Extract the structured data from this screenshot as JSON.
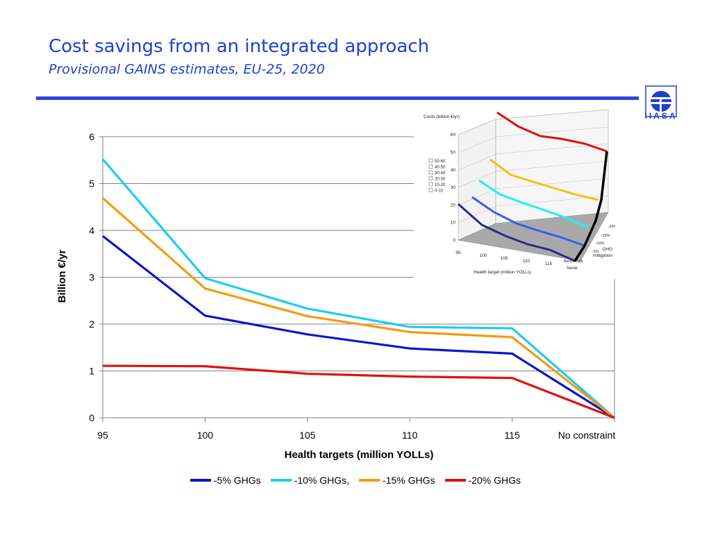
{
  "header": {
    "title": "Cost savings from an integrated approach",
    "subtitle": "Provisional GAINS estimates, EU-25, 2020"
  },
  "logo": {
    "text": "IIASA",
    "color": "#1f3fcf"
  },
  "chart_data": {
    "type": "line",
    "categories": [
      "95",
      "100",
      "105",
      "110",
      "115",
      "No  constraint"
    ],
    "xlabel": "Health targets (million YOLLs)",
    "ylabel": "Billion €/yr",
    "ylim": [
      0,
      6
    ],
    "yticks": [
      0,
      1,
      2,
      3,
      4,
      5,
      6
    ],
    "grid": true,
    "legend_position": "bottom",
    "series": [
      {
        "name": "-5% GHGs",
        "color": "#0a16c8",
        "values": [
          3.88,
          2.18,
          1.78,
          1.48,
          1.37,
          0
        ]
      },
      {
        "name": "-10% GHGs,",
        "color": "#1ccdf0",
        "values": [
          5.52,
          2.98,
          2.33,
          1.94,
          1.91,
          0
        ]
      },
      {
        "name": "-15% GHGs",
        "color": "#f59a10",
        "values": [
          4.69,
          2.76,
          2.17,
          1.83,
          1.72,
          0
        ]
      },
      {
        "name": "-20% GHGs",
        "color": "#e01010",
        "values": [
          1.11,
          1.1,
          0.94,
          0.88,
          0.85,
          0
        ]
      }
    ]
  },
  "inset": {
    "title": "Costs (billion €/yr)",
    "z_ticks": [
      "0",
      "10",
      "20",
      "30",
      "40",
      "50",
      "60"
    ],
    "x_ticks": [
      "95",
      "100",
      "105",
      "110",
      "115",
      "None"
    ],
    "x_label": "Health target (million YOLLs)",
    "y_ticks": [
      "-20%",
      "-15%",
      "-10%",
      "-5%",
      "Benchmark"
    ],
    "y_label": [
      "GHG",
      "mitigation"
    ],
    "legend": [
      "50-60",
      "40-50",
      "30-40",
      "20-30",
      "10-20",
      "0-10"
    ]
  }
}
